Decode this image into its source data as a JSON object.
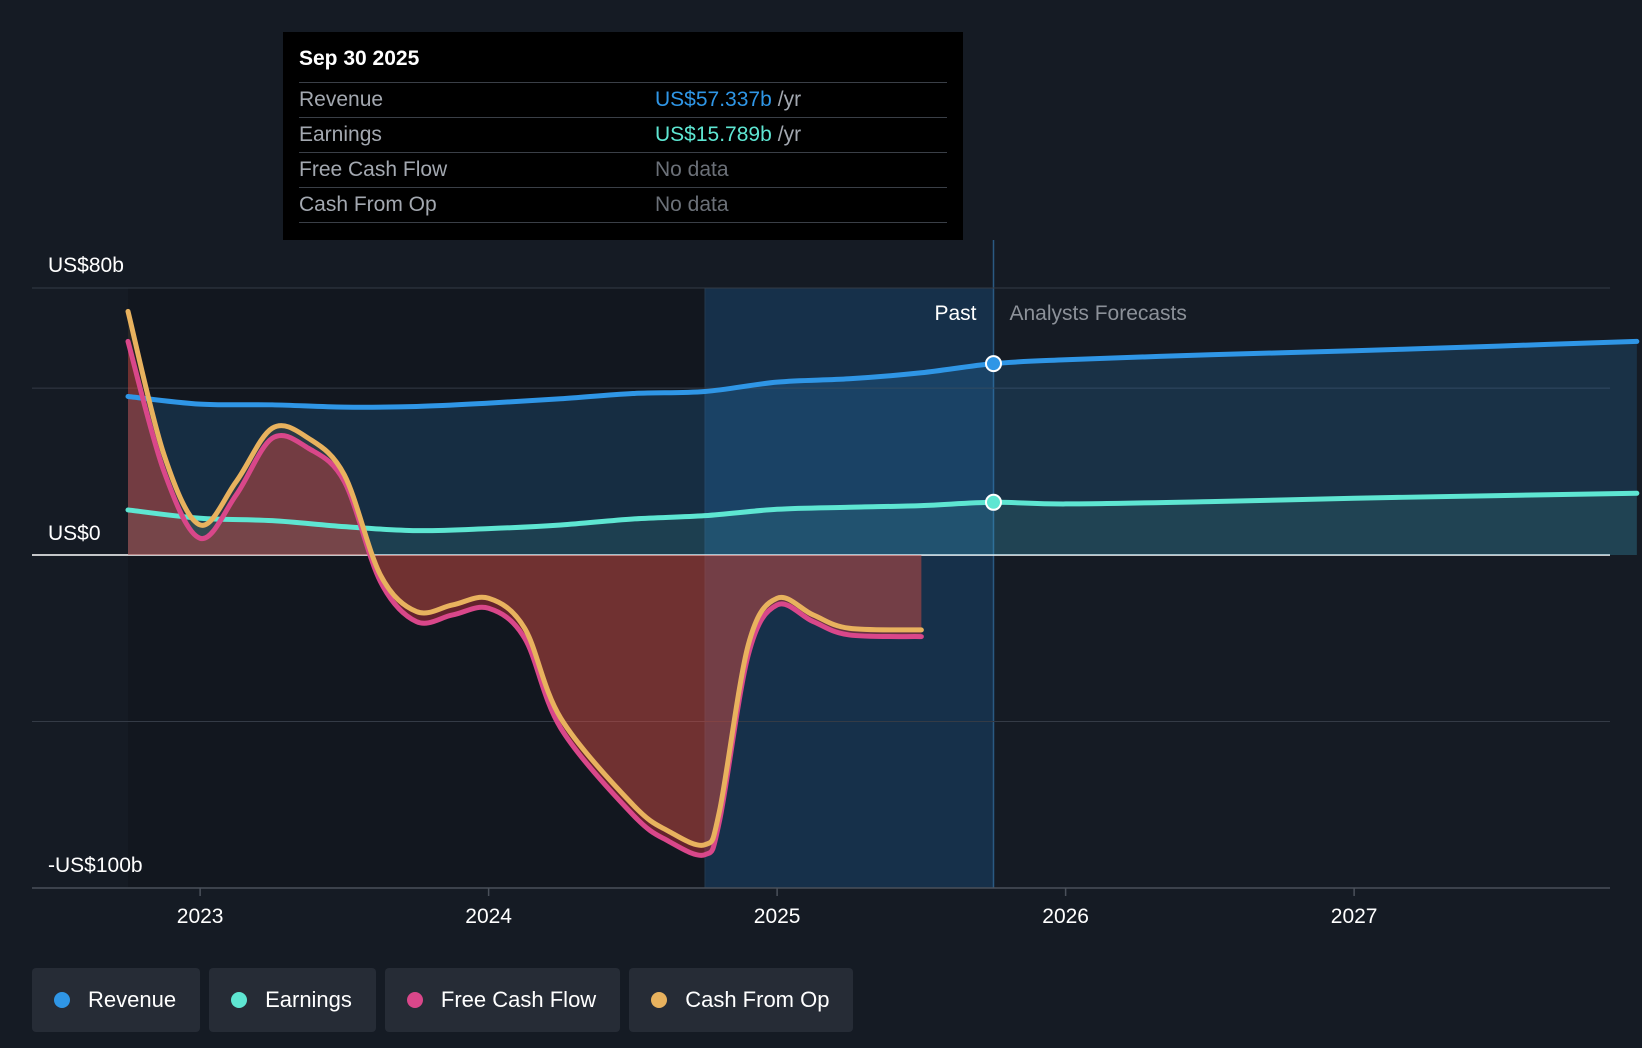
{
  "tooltip": {
    "date": "Sep 30 2025",
    "rows": [
      {
        "label": "Revenue",
        "value": "US$57.337b",
        "unit": "/yr"
      },
      {
        "label": "Earnings",
        "value": "US$15.789b",
        "unit": "/yr"
      },
      {
        "label": "Free Cash Flow",
        "value": "No data",
        "unit": ""
      },
      {
        "label": "Cash From Op",
        "value": "No data",
        "unit": ""
      }
    ]
  },
  "labels": {
    "past": "Past",
    "forecast": "Analysts Forecasts",
    "y_top": "US$80b",
    "y_zero": "US$0",
    "y_bottom": "-US$100b"
  },
  "legend": [
    {
      "label": "Revenue",
      "color": "#2f96e6"
    },
    {
      "label": "Earnings",
      "color": "#5ee6d2"
    },
    {
      "label": "Free Cash Flow",
      "color": "#d9478a"
    },
    {
      "label": "Cash From Op",
      "color": "#e8b25e"
    }
  ],
  "colors": {
    "revenue": "#2f96e6",
    "earnings": "#5ee6d2",
    "fcf": "#d9478a",
    "cfo": "#e8b25e",
    "background": "#151b24"
  },
  "chart_data": {
    "type": "line",
    "title": "",
    "xlabel": "",
    "ylabel": "",
    "x_ticks": [
      "2023",
      "2024",
      "2025",
      "2026",
      "2027"
    ],
    "x_range": [
      2022.75,
      2027.98
    ],
    "ylim": [
      -100,
      80
    ],
    "y_ticks": [
      80,
      0,
      -100
    ],
    "y_gridlines": [
      80,
      50,
      0,
      -50,
      -100
    ],
    "past_cutoff": 2025.75,
    "highlight_start": 2024.75,
    "series": [
      {
        "name": "Revenue",
        "key": "revenue",
        "x": [
          2022.75,
          2023.0,
          2023.25,
          2023.5,
          2023.75,
          2024.0,
          2024.25,
          2024.5,
          2024.75,
          2025.0,
          2025.25,
          2025.5,
          2025.75,
          2026.0,
          2026.5,
          2027.0,
          2027.5,
          2027.98
        ],
        "values": [
          47.5,
          45.2,
          45.0,
          44.3,
          44.5,
          45.5,
          46.8,
          48.4,
          49.0,
          51.8,
          52.8,
          54.6,
          57.337,
          58.5,
          60.0,
          61.2,
          62.6,
          64.0
        ]
      },
      {
        "name": "Earnings",
        "key": "earnings",
        "x": [
          2022.75,
          2023.0,
          2023.25,
          2023.5,
          2023.75,
          2024.0,
          2024.25,
          2024.5,
          2024.75,
          2025.0,
          2025.25,
          2025.5,
          2025.75,
          2026.0,
          2026.5,
          2027.0,
          2027.5,
          2027.98
        ],
        "values": [
          13.5,
          11.0,
          10.3,
          8.5,
          7.3,
          7.9,
          9.0,
          10.8,
          11.8,
          13.7,
          14.3,
          14.8,
          15.789,
          15.3,
          16.0,
          17.0,
          17.8,
          18.5
        ]
      },
      {
        "name": "Free Cash Flow",
        "key": "fcf",
        "x": [
          2022.75,
          2022.875,
          2023.0,
          2023.125,
          2023.25,
          2023.375,
          2023.5,
          2023.625,
          2023.75,
          2023.875,
          2024.0,
          2024.125,
          2024.25,
          2024.5,
          2024.625,
          2024.75,
          2024.8,
          2024.9,
          2025.0,
          2025.125,
          2025.25,
          2025.5
        ],
        "values": [
          64,
          25,
          5,
          18,
          35,
          32,
          22,
          -8,
          -20,
          -18,
          -16,
          -25,
          -52,
          -78,
          -86,
          -90,
          -80,
          -30,
          -15,
          -20,
          -24,
          -24.5
        ]
      },
      {
        "name": "Cash From Op",
        "key": "cfo",
        "x": [
          2022.75,
          2022.875,
          2023.0,
          2023.125,
          2023.25,
          2023.375,
          2023.5,
          2023.625,
          2023.75,
          2023.875,
          2024.0,
          2024.125,
          2024.25,
          2024.5,
          2024.625,
          2024.75,
          2024.8,
          2024.9,
          2025.0,
          2025.125,
          2025.25,
          2025.5
        ],
        "values": [
          73,
          30,
          9,
          22,
          38,
          35,
          24,
          -6,
          -17,
          -15,
          -13,
          -22,
          -49,
          -75,
          -83,
          -87,
          -77,
          -27,
          -13,
          -18,
          -22,
          -22.5
        ]
      }
    ]
  }
}
